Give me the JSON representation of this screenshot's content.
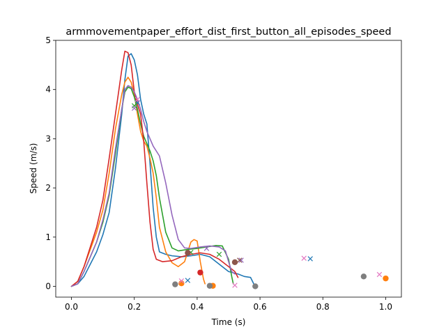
{
  "chart_data": {
    "type": "line",
    "title": "armmovementpaper_effort_dist_first_button_all_episodes_speed",
    "xlabel": "Time (s)",
    "ylabel": "Speed (m/s)",
    "xlim": [
      -0.05,
      1.05
    ],
    "ylim": [
      -0.22,
      5.0
    ],
    "xticks": [
      "0.0",
      "0.2",
      "0.4",
      "0.6",
      "0.8",
      "1.0"
    ],
    "yticks": [
      "0",
      "1",
      "2",
      "3",
      "4",
      "5"
    ],
    "grid": false,
    "legend": "none",
    "series": [
      {
        "color": "#1f77b4",
        "points": [
          [
            0.0,
            0.0
          ],
          [
            0.02,
            0.05
          ],
          [
            0.04,
            0.2
          ],
          [
            0.06,
            0.45
          ],
          [
            0.08,
            0.7
          ],
          [
            0.1,
            1.05
          ],
          [
            0.12,
            1.5
          ],
          [
            0.14,
            2.4
          ],
          [
            0.16,
            3.5
          ],
          [
            0.17,
            4.2
          ],
          [
            0.18,
            4.68
          ],
          [
            0.19,
            4.73
          ],
          [
            0.2,
            4.6
          ],
          [
            0.21,
            4.3
          ],
          [
            0.22,
            3.8
          ],
          [
            0.23,
            3.5
          ],
          [
            0.24,
            3.3
          ],
          [
            0.25,
            2.5
          ],
          [
            0.26,
            1.6
          ],
          [
            0.27,
            1.0
          ],
          [
            0.28,
            0.7
          ],
          [
            0.3,
            0.65
          ],
          [
            0.32,
            0.62
          ],
          [
            0.35,
            0.6
          ],
          [
            0.38,
            0.62
          ],
          [
            0.41,
            0.65
          ],
          [
            0.44,
            0.6
          ],
          [
            0.47,
            0.45
          ],
          [
            0.5,
            0.3
          ],
          [
            0.53,
            0.25
          ],
          [
            0.55,
            0.2
          ],
          [
            0.57,
            0.18
          ],
          [
            0.58,
            0.05
          ]
        ],
        "markers": [
          {
            "kind": "x",
            "x": 0.21,
            "y": 3.73
          },
          {
            "kind": "x",
            "x": 0.37,
            "y": 0.12
          },
          {
            "kind": "x",
            "x": 0.76,
            "y": 0.56
          }
        ]
      },
      {
        "color": "#ff7f0e",
        "points": [
          [
            0.0,
            0.0
          ],
          [
            0.02,
            0.1
          ],
          [
            0.04,
            0.4
          ],
          [
            0.06,
            0.75
          ],
          [
            0.08,
            1.1
          ],
          [
            0.1,
            1.55
          ],
          [
            0.12,
            2.3
          ],
          [
            0.14,
            3.2
          ],
          [
            0.16,
            3.9
          ],
          [
            0.17,
            4.15
          ],
          [
            0.18,
            4.25
          ],
          [
            0.19,
            4.15
          ],
          [
            0.2,
            3.9
          ],
          [
            0.21,
            3.5
          ],
          [
            0.22,
            3.15
          ],
          [
            0.23,
            2.95
          ],
          [
            0.24,
            2.85
          ],
          [
            0.25,
            2.6
          ],
          [
            0.26,
            2.3
          ],
          [
            0.27,
            1.8
          ],
          [
            0.28,
            1.2
          ],
          [
            0.3,
            0.7
          ],
          [
            0.32,
            0.48
          ],
          [
            0.34,
            0.4
          ],
          [
            0.36,
            0.5
          ],
          [
            0.38,
            0.9
          ],
          [
            0.39,
            0.95
          ],
          [
            0.4,
            0.92
          ],
          [
            0.41,
            0.5
          ],
          [
            0.42,
            0.15
          ],
          [
            0.425,
            0.05
          ]
        ],
        "markers": [
          {
            "kind": "dot",
            "x": 0.35,
            "y": 0.06
          },
          {
            "kind": "dot",
            "x": 0.45,
            "y": 0.01
          },
          {
            "kind": "dot",
            "x": 1.0,
            "y": 0.16
          }
        ]
      },
      {
        "color": "#2ca02c",
        "points": [
          [
            0.0,
            0.0
          ],
          [
            0.02,
            0.05
          ],
          [
            0.04,
            0.3
          ],
          [
            0.06,
            0.6
          ],
          [
            0.08,
            0.9
          ],
          [
            0.1,
            1.3
          ],
          [
            0.12,
            1.85
          ],
          [
            0.14,
            2.7
          ],
          [
            0.16,
            3.6
          ],
          [
            0.17,
            3.95
          ],
          [
            0.18,
            4.05
          ],
          [
            0.19,
            4.02
          ],
          [
            0.2,
            3.85
          ],
          [
            0.21,
            3.6
          ],
          [
            0.22,
            3.3
          ],
          [
            0.23,
            3.05
          ],
          [
            0.24,
            2.9
          ],
          [
            0.25,
            2.75
          ],
          [
            0.26,
            2.55
          ],
          [
            0.27,
            2.25
          ],
          [
            0.28,
            1.8
          ],
          [
            0.3,
            1.1
          ],
          [
            0.32,
            0.78
          ],
          [
            0.34,
            0.72
          ],
          [
            0.37,
            0.75
          ],
          [
            0.4,
            0.77
          ],
          [
            0.43,
            0.8
          ],
          [
            0.46,
            0.83
          ],
          [
            0.48,
            0.82
          ],
          [
            0.5,
            0.55
          ],
          [
            0.51,
            0.2
          ],
          [
            0.515,
            0.05
          ]
        ],
        "markers": [
          {
            "kind": "x",
            "x": 0.2,
            "y": 3.67
          },
          {
            "kind": "x",
            "x": 0.38,
            "y": 0.69
          },
          {
            "kind": "x",
            "x": 0.47,
            "y": 0.65
          }
        ]
      },
      {
        "color": "#d62728",
        "points": [
          [
            0.0,
            0.0
          ],
          [
            0.02,
            0.1
          ],
          [
            0.04,
            0.4
          ],
          [
            0.06,
            0.8
          ],
          [
            0.08,
            1.2
          ],
          [
            0.1,
            1.75
          ],
          [
            0.12,
            2.6
          ],
          [
            0.14,
            3.5
          ],
          [
            0.16,
            4.4
          ],
          [
            0.17,
            4.78
          ],
          [
            0.18,
            4.75
          ],
          [
            0.19,
            4.5
          ],
          [
            0.2,
            3.95
          ],
          [
            0.21,
            3.7
          ],
          [
            0.22,
            3.5
          ],
          [
            0.23,
            2.95
          ],
          [
            0.24,
            2.1
          ],
          [
            0.25,
            1.3
          ],
          [
            0.26,
            0.75
          ],
          [
            0.27,
            0.55
          ],
          [
            0.29,
            0.5
          ],
          [
            0.32,
            0.52
          ],
          [
            0.35,
            0.6
          ],
          [
            0.38,
            0.65
          ],
          [
            0.41,
            0.68
          ],
          [
            0.44,
            0.65
          ],
          [
            0.47,
            0.55
          ],
          [
            0.5,
            0.4
          ],
          [
            0.52,
            0.3
          ],
          [
            0.53,
            0.18
          ]
        ],
        "markers": [
          {
            "kind": "dot",
            "x": 0.41,
            "y": 0.28
          }
        ]
      },
      {
        "color": "#9467bd",
        "points": [
          [
            0.0,
            0.0
          ],
          [
            0.02,
            0.05
          ],
          [
            0.04,
            0.3
          ],
          [
            0.06,
            0.6
          ],
          [
            0.08,
            0.9
          ],
          [
            0.1,
            1.35
          ],
          [
            0.12,
            1.9
          ],
          [
            0.14,
            2.8
          ],
          [
            0.16,
            3.6
          ],
          [
            0.17,
            4.0
          ],
          [
            0.18,
            4.08
          ],
          [
            0.19,
            4.05
          ],
          [
            0.2,
            3.95
          ],
          [
            0.21,
            3.8
          ],
          [
            0.22,
            3.6
          ],
          [
            0.23,
            3.35
          ],
          [
            0.24,
            3.15
          ],
          [
            0.25,
            3.0
          ],
          [
            0.26,
            2.85
          ],
          [
            0.28,
            2.65
          ],
          [
            0.3,
            2.1
          ],
          [
            0.32,
            1.45
          ],
          [
            0.34,
            0.95
          ],
          [
            0.36,
            0.78
          ],
          [
            0.38,
            0.77
          ],
          [
            0.41,
            0.8
          ],
          [
            0.44,
            0.82
          ],
          [
            0.47,
            0.8
          ],
          [
            0.49,
            0.72
          ],
          [
            0.5,
            0.5
          ],
          [
            0.51,
            0.3
          ],
          [
            0.52,
            0.25
          ]
        ],
        "markers": [
          {
            "kind": "x",
            "x": 0.2,
            "y": 3.62
          },
          {
            "kind": "x",
            "x": 0.43,
            "y": 0.77
          },
          {
            "kind": "x",
            "x": 0.54,
            "y": 0.53
          }
        ]
      },
      {
        "color": "#8c564b",
        "points": [],
        "markers": [
          {
            "kind": "dot",
            "x": 0.37,
            "y": 0.68
          },
          {
            "kind": "dot",
            "x": 0.52,
            "y": 0.49
          },
          {
            "kind": "x",
            "x": 0.535,
            "y": 0.53
          }
        ]
      },
      {
        "color": "#e377c2",
        "points": [],
        "markers": [
          {
            "kind": "x",
            "x": 0.21,
            "y": 3.8
          },
          {
            "kind": "x",
            "x": 0.35,
            "y": 0.11
          },
          {
            "kind": "x",
            "x": 0.52,
            "y": 0.02
          },
          {
            "kind": "x",
            "x": 0.74,
            "y": 0.57
          },
          {
            "kind": "x",
            "x": 0.98,
            "y": 0.24
          }
        ]
      },
      {
        "color": "#7f7f7f",
        "points": [],
        "markers": [
          {
            "kind": "dot",
            "x": 0.33,
            "y": 0.04
          },
          {
            "kind": "dot",
            "x": 0.44,
            "y": 0.01
          },
          {
            "kind": "dot",
            "x": 0.585,
            "y": 0.0
          },
          {
            "kind": "dot",
            "x": 0.93,
            "y": 0.2
          }
        ]
      }
    ]
  }
}
